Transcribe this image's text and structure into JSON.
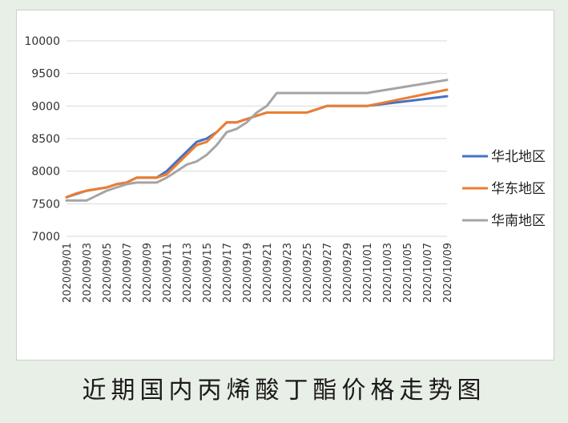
{
  "caption": "近期国内丙烯酸丁酯价格走势图",
  "chart_data": {
    "type": "line",
    "x": [
      "2020/09/01",
      "2020/09/02",
      "2020/09/03",
      "2020/09/04",
      "2020/09/05",
      "2020/09/06",
      "2020/09/07",
      "2020/09/08",
      "2020/09/09",
      "2020/09/10",
      "2020/09/11",
      "2020/09/12",
      "2020/09/13",
      "2020/09/14",
      "2020/09/15",
      "2020/09/16",
      "2020/09/17",
      "2020/09/18",
      "2020/09/19",
      "2020/09/20",
      "2020/09/21",
      "2020/09/22",
      "2020/09/23",
      "2020/09/24",
      "2020/09/25",
      "2020/09/26",
      "2020/09/27",
      "2020/09/28",
      "2020/09/29",
      "2020/09/30",
      "2020/10/01",
      "2020/10/02",
      "2020/10/03",
      "2020/10/04",
      "2020/10/05",
      "2020/10/06",
      "2020/10/07",
      "2020/10/08",
      "2020/10/09"
    ],
    "tick_labels": [
      "2020/09/01",
      "2020/09/03",
      "2020/09/05",
      "2020/09/07",
      "2020/09/09",
      "2020/09/11",
      "2020/09/13",
      "2020/09/15",
      "2020/09/17",
      "2020/09/19",
      "2020/09/21",
      "2020/09/23",
      "2020/09/25",
      "2020/09/27",
      "2020/09/29",
      "2020/10/01",
      "2020/10/03",
      "2020/10/05",
      "2020/10/07",
      "2020/10/09"
    ],
    "yticks": [
      "7000",
      "7500",
      "8000",
      "8500",
      "9000",
      "9500",
      "10000"
    ],
    "ylim": [
      7000,
      10000
    ],
    "grid": "horizontal",
    "legend_position": "right",
    "series": [
      {
        "name": "华北地区",
        "color": "#4472c4",
        "values": [
          7600,
          7650,
          7700,
          7725,
          7750,
          7800,
          7825,
          7900,
          7900,
          7900,
          8000,
          8150,
          8300,
          8450,
          8500,
          8600,
          8750,
          8750,
          8800,
          8850,
          8900,
          8900,
          8900,
          8900,
          8900,
          8950,
          9000,
          9000,
          9000,
          9000,
          9000,
          9019,
          9038,
          9056,
          9075,
          9094,
          9112,
          9131,
          9150
        ]
      },
      {
        "name": "华东地区",
        "color": "#ed7d31",
        "values": [
          7600,
          7660,
          7700,
          7725,
          7750,
          7800,
          7825,
          7900,
          7900,
          7900,
          7950,
          8100,
          8250,
          8400,
          8450,
          8600,
          8750,
          8750,
          8800,
          8850,
          8900,
          8900,
          8900,
          8900,
          8900,
          8950,
          9000,
          9000,
          9000,
          9000,
          9000,
          9031,
          9062,
          9094,
          9125,
          9156,
          9188,
          9219,
          9250
        ]
      },
      {
        "name": "华南地区",
        "color": "#a5a5a5",
        "values": [
          7550,
          7550,
          7550,
          7625,
          7700,
          7750,
          7800,
          7825,
          7825,
          7825,
          7900,
          8000,
          8100,
          8150,
          8250,
          8400,
          8600,
          8650,
          8750,
          8900,
          9000,
          9200,
          9200,
          9200,
          9200,
          9200,
          9200,
          9200,
          9200,
          9200,
          9200,
          9225,
          9250,
          9275,
          9300,
          9325,
          9350,
          9375,
          9400
        ]
      }
    ]
  }
}
